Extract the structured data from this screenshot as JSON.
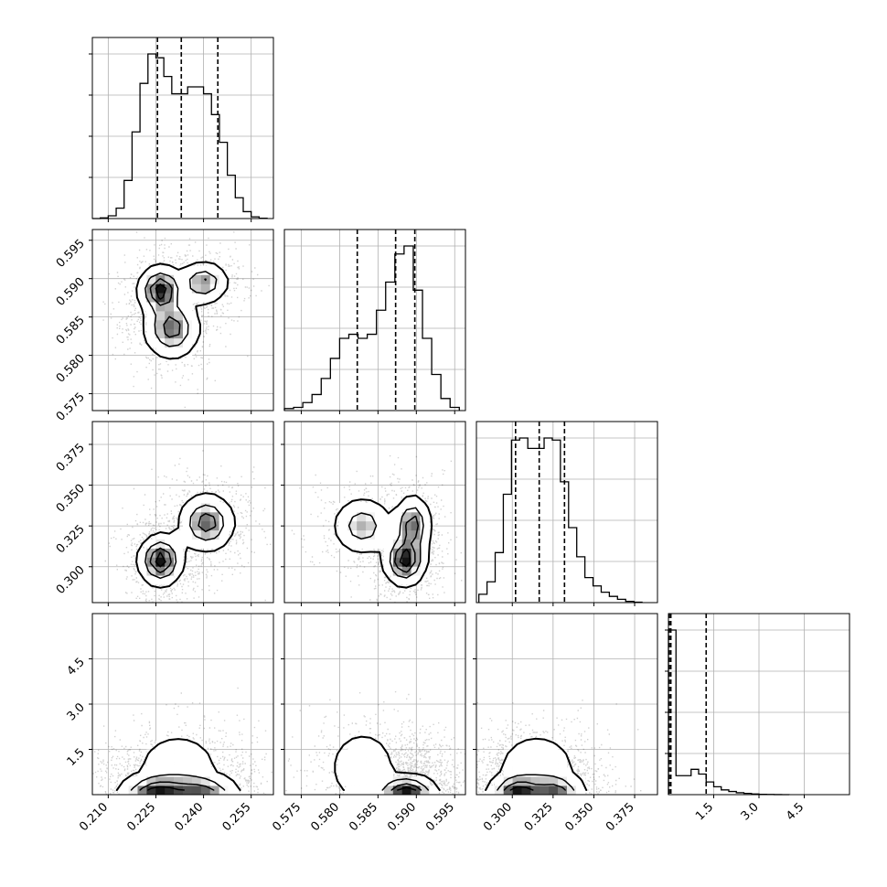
{
  "chart_data": {
    "type": "corner",
    "parameters": 4,
    "grid": true,
    "colors": {
      "scatter": "#000000",
      "contour": "#000000",
      "density": "#000000"
    },
    "axes": [
      {
        "range": [
          0.205,
          0.262
        ],
        "ticks": [
          0.21,
          0.225,
          0.24,
          0.255
        ],
        "tick_labels": [
          "0.210",
          "0.225",
          "0.240",
          "0.255"
        ]
      },
      {
        "range": [
          0.5728,
          0.5964
        ],
        "ticks": [
          0.575,
          0.58,
          0.585,
          0.59,
          0.595
        ],
        "tick_labels": [
          "0.575",
          "0.580",
          "0.585",
          "0.590",
          "0.595"
        ]
      },
      {
        "range": [
          0.278,
          0.389
        ],
        "ticks": [
          0.3,
          0.325,
          0.35,
          0.375
        ],
        "tick_labels": [
          "0.300",
          "0.325",
          "0.350",
          "0.375"
        ]
      },
      {
        "range": [
          0.0,
          6.0
        ],
        "ticks": [
          1.5,
          3.0,
          4.5
        ],
        "tick_labels": [
          "1.5",
          "3.0",
          "4.5"
        ]
      }
    ],
    "quantiles": [
      [
        0.2255,
        0.233,
        0.2445
      ],
      [
        0.5823,
        0.5873,
        0.5898
      ],
      [
        0.302,
        0.3165,
        0.332
      ],
      [
        0.03,
        0.08,
        1.25
      ]
    ],
    "histograms": [
      {
        "bin_edges": [
          0.205,
          0.2075,
          0.21,
          0.2125,
          0.215,
          0.2175,
          0.22,
          0.2225,
          0.225,
          0.2275,
          0.23,
          0.2325,
          0.235,
          0.2375,
          0.24,
          0.2425,
          0.245,
          0.2475,
          0.25,
          0.2525,
          0.255,
          0.2575,
          0.26
        ],
        "counts": [
          0,
          20,
          80,
          300,
          1100,
          2500,
          3900,
          4750,
          4640,
          4100,
          3600,
          3600,
          3800,
          3800,
          3600,
          3000,
          2200,
          1250,
          600,
          200,
          50,
          10
        ]
      },
      {
        "bin_edges": [
          0.5728,
          0.574,
          0.5752,
          0.5764,
          0.5776,
          0.5788,
          0.58,
          0.5812,
          0.5824,
          0.5836,
          0.5848,
          0.586,
          0.5872,
          0.5884,
          0.5896,
          0.5908,
          0.592,
          0.5932,
          0.5944,
          0.5956
        ],
        "counts": [
          50,
          80,
          200,
          400,
          800,
          1300,
          1800,
          1900,
          1800,
          1900,
          2500,
          3200,
          3900,
          4100,
          3000,
          1800,
          900,
          300,
          80
        ]
      },
      {
        "bin_edges": [
          0.2795,
          0.2845,
          0.2895,
          0.2945,
          0.2995,
          0.3045,
          0.3095,
          0.3145,
          0.3195,
          0.3245,
          0.3295,
          0.3345,
          0.3395,
          0.3445,
          0.3495,
          0.3545,
          0.3595,
          0.3645,
          0.3695,
          0.3745,
          0.3795
        ],
        "counts": [
          200,
          500,
          1200,
          2600,
          3900,
          3950,
          3700,
          3700,
          3950,
          3900,
          2900,
          1800,
          1100,
          600,
          400,
          250,
          150,
          80,
          30,
          10
        ]
      },
      {
        "bin_edges": [
          0.0,
          0.25,
          0.5,
          0.75,
          1.0,
          1.25,
          1.5,
          1.75,
          2.0,
          2.25,
          2.5,
          2.75,
          3.0,
          3.25,
          3.5,
          3.75,
          4.0
        ],
        "counts": [
          5200,
          600,
          600,
          800,
          650,
          400,
          250,
          150,
          100,
          60,
          40,
          20,
          10,
          5,
          2,
          1
        ]
      }
    ],
    "pair_modes": {
      "0-1": [
        {
          "x": 0.2265,
          "y": 0.5885,
          "sx": 0.0035,
          "sy": 0.0016,
          "w": 1.0
        },
        {
          "x": 0.24,
          "y": 0.5895,
          "sx": 0.004,
          "sy": 0.0014,
          "w": 0.7
        },
        {
          "x": 0.23,
          "y": 0.5835,
          "sx": 0.0045,
          "sy": 0.002,
          "w": 0.8
        }
      ],
      "0-2": [
        {
          "x": 0.2265,
          "y": 0.304,
          "sx": 0.0035,
          "sy": 0.008,
          "w": 1.0
        },
        {
          "x": 0.241,
          "y": 0.327,
          "sx": 0.0045,
          "sy": 0.009,
          "w": 0.8
        }
      ],
      "0-3": [
        {
          "x": 0.225,
          "y": 0.15,
          "sx": 0.006,
          "sy": 0.25,
          "w": 1.0
        },
        {
          "x": 0.24,
          "y": 0.15,
          "sx": 0.006,
          "sy": 0.25,
          "w": 0.8
        },
        {
          "x": 0.232,
          "y": 0.9,
          "sx": 0.008,
          "sy": 0.7,
          "w": 0.35
        }
      ],
      "1-2": [
        {
          "x": 0.5885,
          "y": 0.304,
          "sx": 0.0014,
          "sy": 0.008,
          "w": 1.0
        },
        {
          "x": 0.5895,
          "y": 0.326,
          "sx": 0.0012,
          "sy": 0.009,
          "w": 0.8
        },
        {
          "x": 0.583,
          "y": 0.325,
          "sx": 0.002,
          "sy": 0.009,
          "w": 0.6
        }
      ],
      "1-3": [
        {
          "x": 0.5888,
          "y": 0.15,
          "sx": 0.002,
          "sy": 0.25,
          "w": 1.0
        },
        {
          "x": 0.583,
          "y": 0.9,
          "sx": 0.0025,
          "sy": 0.7,
          "w": 0.35
        }
      ],
      "2-3": [
        {
          "x": 0.303,
          "y": 0.15,
          "sx": 0.009,
          "sy": 0.25,
          "w": 1.0
        },
        {
          "x": 0.327,
          "y": 0.15,
          "sx": 0.009,
          "sy": 0.25,
          "w": 0.8
        },
        {
          "x": 0.315,
          "y": 0.9,
          "sx": 0.015,
          "sy": 0.7,
          "w": 0.35
        }
      ]
    }
  }
}
